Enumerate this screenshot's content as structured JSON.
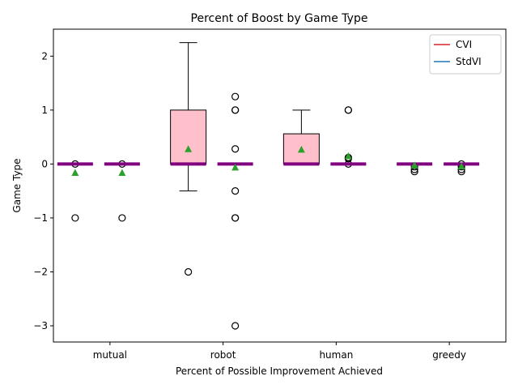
{
  "chart_data": {
    "type": "box",
    "title": "Percent of Boost by Game Type",
    "xlabel": "Percent of Possible Improvement Achieved",
    "ylabel": "Game Type",
    "categories": [
      "mutual",
      "robot",
      "human",
      "greedy"
    ],
    "ylim": [
      -3.3,
      2.5
    ],
    "yticks": [
      2,
      1,
      0,
      -1,
      -2,
      -3
    ],
    "ytick_labels": [
      "2",
      "1",
      "0",
      "−1",
      "−2",
      "−3"
    ],
    "grid": false,
    "legend": {
      "placement": "top-right",
      "entries": [
        {
          "name": "CVI",
          "color": "#d62728"
        },
        {
          "name": "StdVI",
          "color": "#1f77b4"
        }
      ]
    },
    "colors": {
      "box_fill": "#ffc0cb",
      "median": "#800080",
      "mean_marker": "#2ca02c"
    },
    "series": [
      {
        "name": "CVI",
        "boxes": [
          {
            "category": "mutual",
            "q1": 0,
            "median": 0,
            "q3": 0,
            "whisker_low": 0,
            "whisker_high": 0,
            "mean": -0.16,
            "outliers": [
              0,
              -1
            ]
          },
          {
            "category": "robot",
            "q1": 0,
            "median": 0,
            "q3": 1,
            "whisker_low": -0.5,
            "whisker_high": 2.25,
            "mean": 0.28,
            "outliers": [
              -2
            ]
          },
          {
            "category": "human",
            "q1": 0,
            "median": 0,
            "q3": 0.56,
            "whisker_low": 0,
            "whisker_high": 1,
            "mean": 0.27,
            "outliers": []
          },
          {
            "category": "greedy",
            "q1": 0,
            "median": 0,
            "q3": 0,
            "whisker_low": 0,
            "whisker_high": 0,
            "mean": -0.02,
            "outliers": [
              -0.05,
              -0.1,
              -0.14
            ]
          }
        ]
      },
      {
        "name": "StdVI",
        "boxes": [
          {
            "category": "mutual",
            "q1": 0,
            "median": 0,
            "q3": 0,
            "whisker_low": 0,
            "whisker_high": 0,
            "mean": -0.16,
            "outliers": [
              0,
              -1
            ]
          },
          {
            "category": "robot",
            "q1": 0,
            "median": 0,
            "q3": 0,
            "whisker_low": 0,
            "whisker_high": 0,
            "mean": -0.06,
            "outliers": [
              1.25,
              1,
              1,
              0.28,
              -0.5,
              -1,
              -1,
              -3
            ]
          },
          {
            "category": "human",
            "q1": 0,
            "median": 0,
            "q3": 0,
            "whisker_low": 0,
            "whisker_high": 0,
            "mean": 0.15,
            "outliers": [
              1,
              1,
              0.12,
              0.1,
              0
            ]
          },
          {
            "category": "greedy",
            "q1": 0,
            "median": 0,
            "q3": 0,
            "whisker_low": 0,
            "whisker_high": 0,
            "mean": -0.04,
            "outliers": [
              0,
              -0.05,
              -0.1,
              -0.14
            ]
          }
        ]
      }
    ]
  }
}
